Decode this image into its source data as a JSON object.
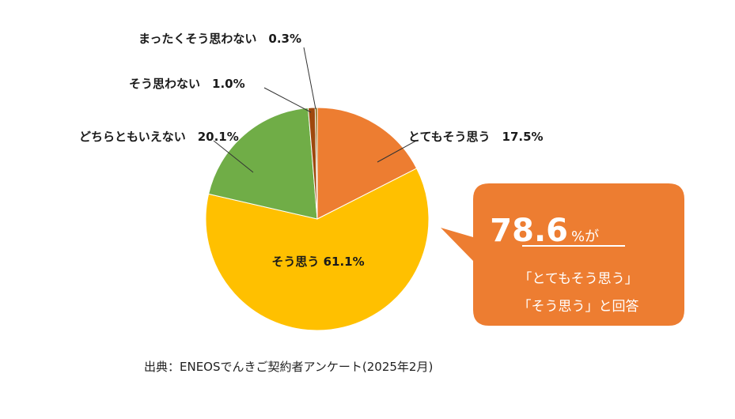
{
  "chart_data": {
    "type": "pie",
    "title": "",
    "slices": [
      {
        "label": "とてもそう思う",
        "value": 17.5,
        "display": "とてもそう思う　17.5%",
        "color": "#ED7D31"
      },
      {
        "label": "そう思う",
        "value": 61.1,
        "display": "そう思う 61.1%",
        "color": "#FFC000"
      },
      {
        "label": "どちらともいえない",
        "value": 20.1,
        "display": "どちらともいえない　20.1%",
        "color": "#70AD47"
      },
      {
        "label": "そう思わない",
        "value": 1.0,
        "display": "そう思わない　1.0%",
        "color": "#9E480E"
      },
      {
        "label": "まったくそう思わない",
        "value": 0.3,
        "display": "まったくそう思わない　0.3%",
        "color": "#7F6000"
      }
    ],
    "start": "top",
    "direction": "clockwise"
  },
  "callout": {
    "big_value": "78.6",
    "suffix": "%が",
    "line1": "「とてもそう思う」",
    "line2": "「そう思う」と回答",
    "color": "#ED7D31"
  },
  "source": "出典：ENEOSでんきご契約者アンケート(2025年2月)"
}
